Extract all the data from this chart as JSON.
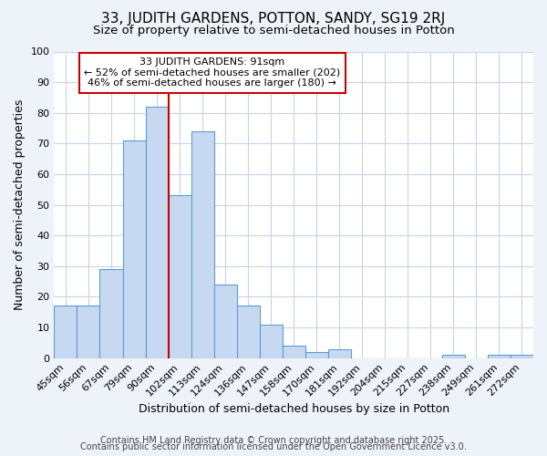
{
  "title": "33, JUDITH GARDENS, POTTON, SANDY, SG19 2RJ",
  "subtitle": "Size of property relative to semi-detached houses in Potton",
  "xlabel": "Distribution of semi-detached houses by size in Potton",
  "ylabel": "Number of semi-detached properties",
  "categories": [
    "45sqm",
    "56sqm",
    "67sqm",
    "79sqm",
    "90sqm",
    "102sqm",
    "113sqm",
    "124sqm",
    "136sqm",
    "147sqm",
    "158sqm",
    "170sqm",
    "181sqm",
    "192sqm",
    "204sqm",
    "215sqm",
    "227sqm",
    "238sqm",
    "249sqm",
    "261sqm",
    "272sqm"
  ],
  "values": [
    17,
    17,
    29,
    71,
    82,
    53,
    74,
    24,
    17,
    11,
    4,
    2,
    3,
    0,
    0,
    0,
    0,
    1,
    0,
    1,
    1
  ],
  "bar_color": "#c6d9f0",
  "bar_edge_color": "#5b9bd5",
  "red_line_index": 4,
  "annotation_title": "33 JUDITH GARDENS: 91sqm",
  "annotation_line1": "← 52% of semi-detached houses are smaller (202)",
  "annotation_line2": "46% of semi-detached houses are larger (180) →",
  "annotation_box_color": "#ffffff",
  "annotation_box_edge": "#cc0000",
  "red_line_color": "#cc0000",
  "ylim": [
    0,
    100
  ],
  "yticks": [
    0,
    10,
    20,
    30,
    40,
    50,
    60,
    70,
    80,
    90,
    100
  ],
  "footer1": "Contains HM Land Registry data © Crown copyright and database right 2025.",
  "footer2": "Contains public sector information licensed under the Open Government Licence v3.0.",
  "bg_color": "#eef2f9",
  "plot_bg_color": "#ffffff",
  "grid_color": "#c8d4e8",
  "title_fontsize": 11,
  "subtitle_fontsize": 9.5,
  "axis_label_fontsize": 9,
  "tick_fontsize": 8,
  "annotation_fontsize": 8,
  "footer_fontsize": 7
}
